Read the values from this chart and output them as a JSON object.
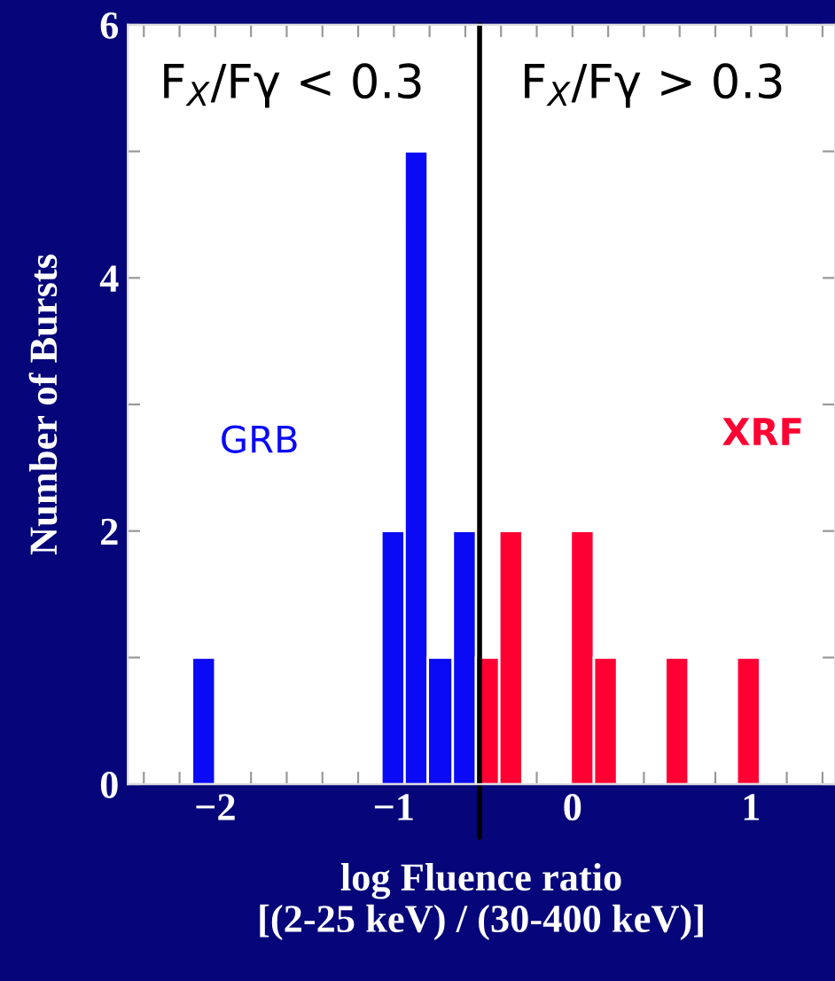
{
  "chart_data": {
    "type": "histogram",
    "xlabel": "log Fluence ratio\n[(2-25 keV) / (30-400 keV)]",
    "ylabel": "Number of Bursts",
    "bins": [
      -2.13,
      -2.0,
      -1.07,
      -0.94,
      -0.81,
      -0.67,
      -0.54,
      -0.41,
      -0.28,
      -0.01,
      0.12,
      0.25,
      0.52,
      0.65,
      0.92,
      1.05
    ],
    "series": [
      {
        "name": "GRB",
        "color": "#0a0af5",
        "values": [
          1,
          0,
          2,
          5,
          1,
          2,
          0,
          0,
          0,
          0,
          0,
          0,
          0,
          0,
          0
        ]
      },
      {
        "name": "XRF",
        "color": "#ff0033",
        "values": [
          0,
          0,
          0,
          0,
          0,
          0,
          1,
          2,
          0,
          2,
          1,
          0,
          1,
          0,
          1
        ]
      }
    ],
    "xlim": [
      -2.49,
      1.47
    ],
    "xticks": [
      {
        "value": -2.4,
        "label": null
      },
      {
        "value": -2.2,
        "label": null
      },
      {
        "value": -2,
        "label": "−2"
      },
      {
        "value": -1.8,
        "label": null
      },
      {
        "value": -1.6,
        "label": null
      },
      {
        "value": -1.4,
        "label": null
      },
      {
        "value": -1.2,
        "label": null
      },
      {
        "value": -1,
        "label": "−1"
      },
      {
        "value": -0.8,
        "label": null
      },
      {
        "value": -0.6,
        "label": null
      },
      {
        "value": -0.4,
        "label": null
      },
      {
        "value": -0.2,
        "label": null
      },
      0,
      {
        "value": 0.2,
        "label": null
      },
      {
        "value": 0.4,
        "label": null
      },
      {
        "value": 0.6,
        "label": null
      },
      {
        "value": 0.8,
        "label": null
      },
      1,
      {
        "value": 1.2,
        "label": null
      },
      {
        "value": 1.4,
        "label": null
      }
    ],
    "ylim": [
      0,
      6
    ],
    "yticks": [
      0,
      {
        "value": 1,
        "label": null
      },
      2,
      {
        "value": 3,
        "label": null
      },
      4,
      {
        "value": 5,
        "label": null
      },
      6
    ],
    "ref_lines": [
      {
        "axis": "x",
        "value": -0.52,
        "color": "#000000"
      }
    ],
    "annotations": [
      "F$_{X}$/Fγ < 0.3",
      "F$_{X}$/Fγ > 0.3"
    ],
    "grid": false,
    "legend": false
  }
}
